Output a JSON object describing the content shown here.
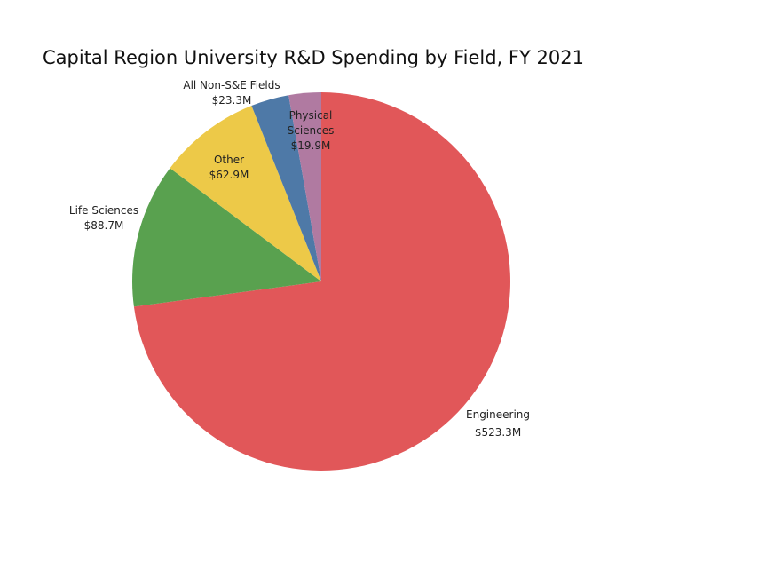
{
  "chart_data": {
    "type": "pie",
    "title": "Capital Region University R&D Spending by Field, FY 2021",
    "start_angle": "12 o'clock",
    "direction": "clockwise",
    "slices": [
      {
        "label": "Engineering",
        "value": 523.3,
        "value_label": "$523.3M",
        "color": "#e15759"
      },
      {
        "label": "Life Sciences",
        "value": 88.7,
        "value_label": "$88.7M",
        "color": "#59a14f"
      },
      {
        "label": "Other",
        "value": 62.9,
        "value_label": "$62.9M",
        "color": "#edc948"
      },
      {
        "label": "All Non-S&E Fields",
        "value": 23.3,
        "value_label": "$23.3M",
        "color": "#4e79a7"
      },
      {
        "label": "Physical Sciences",
        "value": 19.9,
        "value_label": "$19.9M",
        "color": "#b07aa1"
      }
    ],
    "legend": "none"
  }
}
